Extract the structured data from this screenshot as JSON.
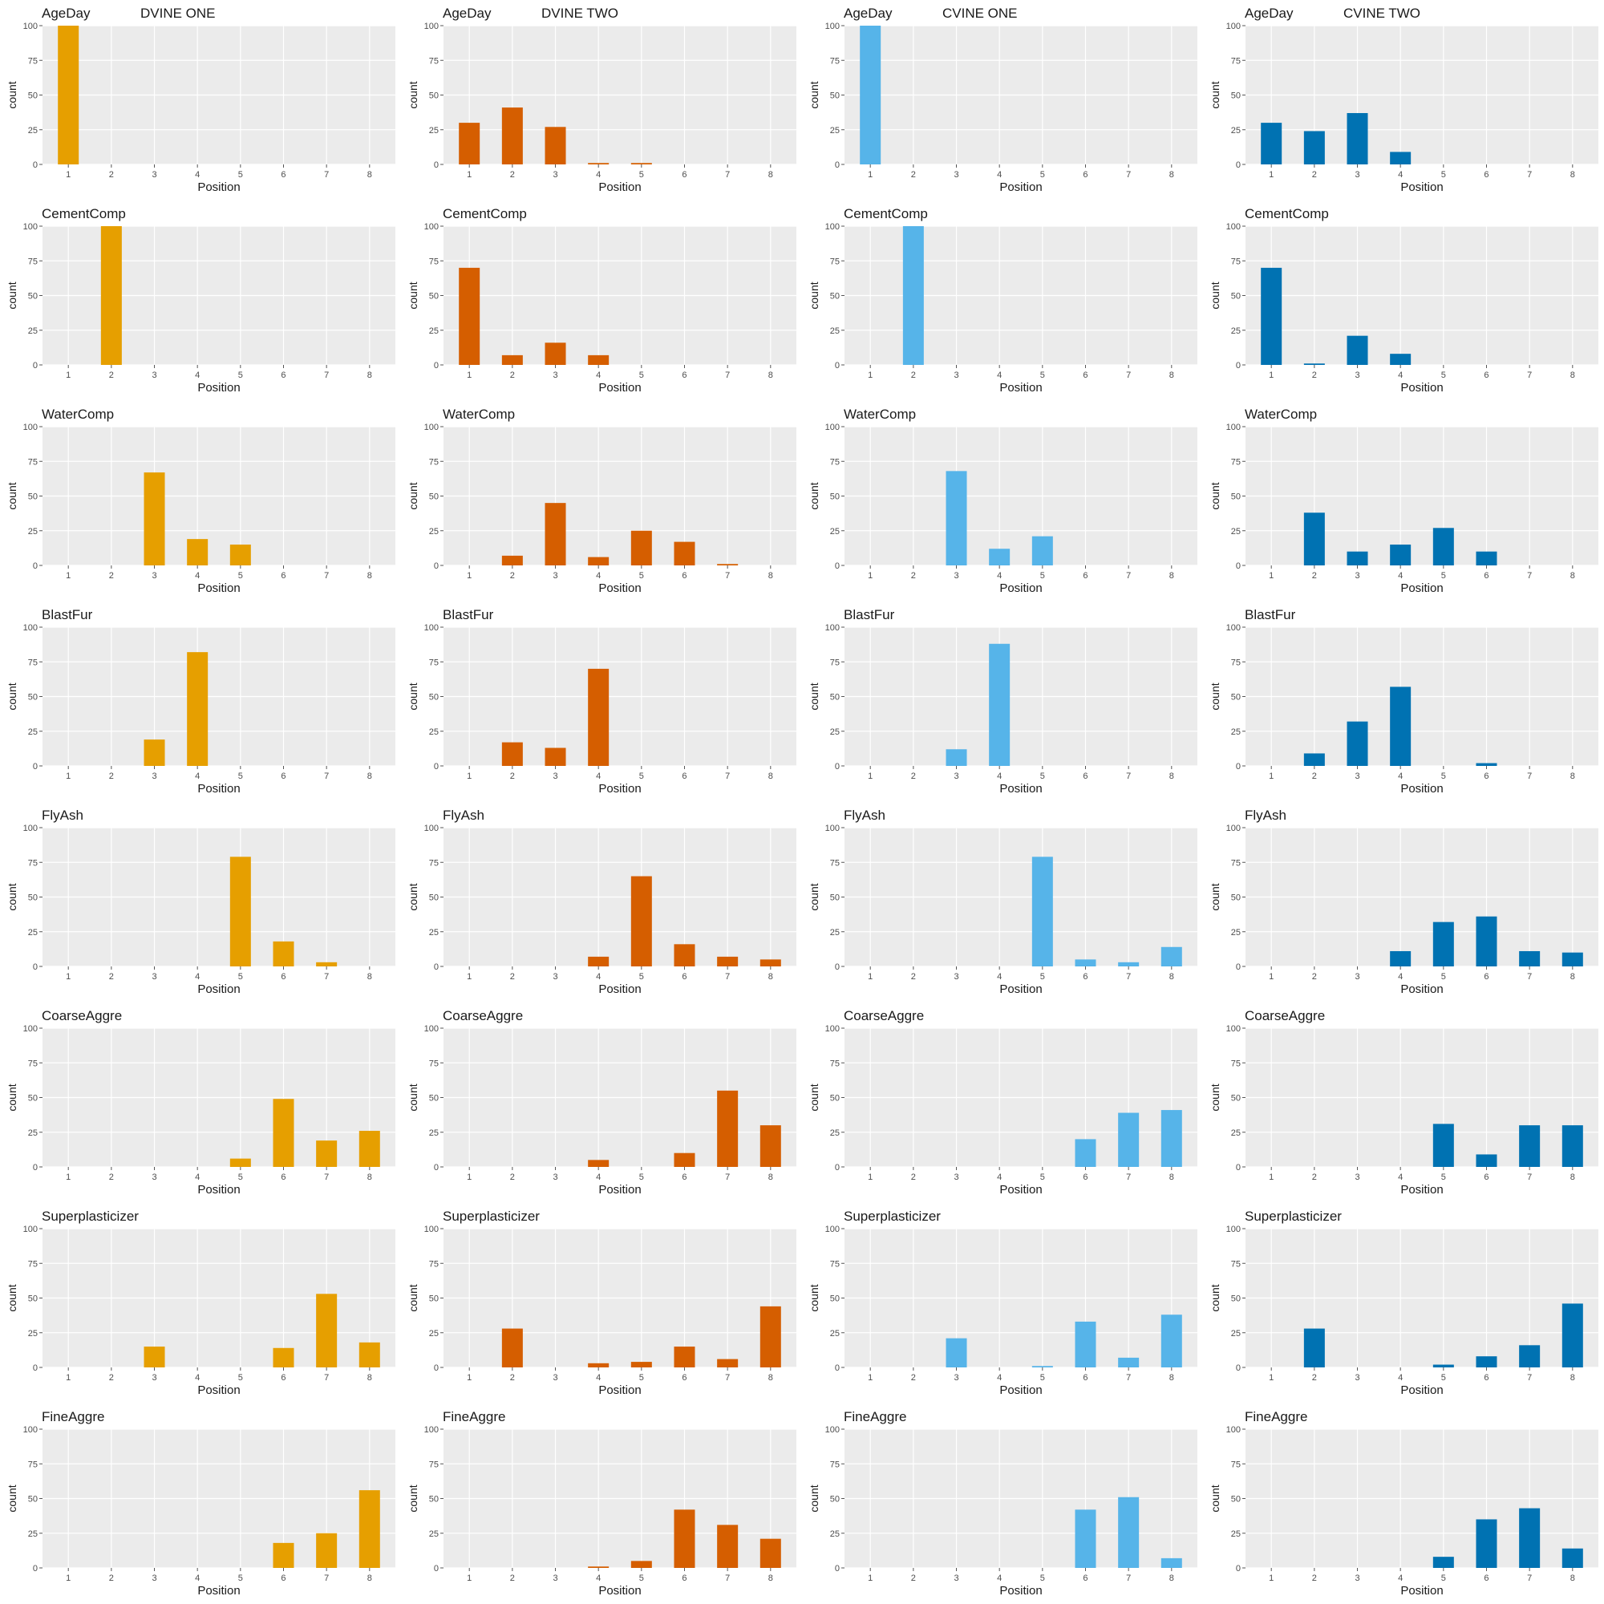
{
  "columns": [
    {
      "title": "DVINE ONE",
      "color": "#E69F00"
    },
    {
      "title": "DVINE TWO",
      "color": "#D55E00"
    },
    {
      "title": "CVINE ONE",
      "color": "#56B4E9"
    },
    {
      "title": "CVINE TWO",
      "color": "#0072B2"
    }
  ],
  "axis": {
    "xlabel": "Position",
    "ylabel": "count",
    "x_ticks": [
      "1",
      "2",
      "3",
      "4",
      "5",
      "6",
      "7",
      "8"
    ],
    "y_ticks": [
      "0",
      "25",
      "50",
      "75",
      "100"
    ],
    "ylim": [
      0,
      100
    ]
  },
  "chart_data": [
    {
      "type": "bar",
      "panel": "AgeDay",
      "column": "DVINE ONE",
      "categories": [
        1,
        2,
        3,
        4,
        5,
        6,
        7,
        8
      ],
      "values": [
        100,
        0,
        0,
        0,
        0,
        0,
        0,
        0
      ]
    },
    {
      "type": "bar",
      "panel": "AgeDay",
      "column": "DVINE TWO",
      "categories": [
        1,
        2,
        3,
        4,
        5,
        6,
        7,
        8
      ],
      "values": [
        30,
        41,
        27,
        1,
        1,
        0,
        0,
        0
      ]
    },
    {
      "type": "bar",
      "panel": "AgeDay",
      "column": "CVINE ONE",
      "categories": [
        1,
        2,
        3,
        4,
        5,
        6,
        7,
        8
      ],
      "values": [
        100,
        0,
        0,
        0,
        0,
        0,
        0,
        0
      ]
    },
    {
      "type": "bar",
      "panel": "AgeDay",
      "column": "CVINE TWO",
      "categories": [
        1,
        2,
        3,
        4,
        5,
        6,
        7,
        8
      ],
      "values": [
        30,
        24,
        37,
        9,
        0,
        0,
        0,
        0
      ]
    },
    {
      "type": "bar",
      "panel": "CementComp",
      "column": "DVINE ONE",
      "categories": [
        1,
        2,
        3,
        4,
        5,
        6,
        7,
        8
      ],
      "values": [
        0,
        100,
        0,
        0,
        0,
        0,
        0,
        0
      ]
    },
    {
      "type": "bar",
      "panel": "CementComp",
      "column": "DVINE TWO",
      "categories": [
        1,
        2,
        3,
        4,
        5,
        6,
        7,
        8
      ],
      "values": [
        70,
        7,
        16,
        7,
        0,
        0,
        0,
        0
      ]
    },
    {
      "type": "bar",
      "panel": "CementComp",
      "column": "CVINE ONE",
      "categories": [
        1,
        2,
        3,
        4,
        5,
        6,
        7,
        8
      ],
      "values": [
        0,
        100,
        0,
        0,
        0,
        0,
        0,
        0
      ]
    },
    {
      "type": "bar",
      "panel": "CementComp",
      "column": "CVINE TWO",
      "categories": [
        1,
        2,
        3,
        4,
        5,
        6,
        7,
        8
      ],
      "values": [
        70,
        1,
        21,
        8,
        0,
        0,
        0,
        0
      ]
    },
    {
      "type": "bar",
      "panel": "WaterComp",
      "column": "DVINE ONE",
      "categories": [
        1,
        2,
        3,
        4,
        5,
        6,
        7,
        8
      ],
      "values": [
        0,
        0,
        67,
        19,
        15,
        0,
        0,
        0
      ]
    },
    {
      "type": "bar",
      "panel": "WaterComp",
      "column": "DVINE TWO",
      "categories": [
        1,
        2,
        3,
        4,
        5,
        6,
        7,
        8
      ],
      "values": [
        0,
        7,
        45,
        6,
        25,
        17,
        1,
        0
      ]
    },
    {
      "type": "bar",
      "panel": "WaterComp",
      "column": "CVINE ONE",
      "categories": [
        1,
        2,
        3,
        4,
        5,
        6,
        7,
        8
      ],
      "values": [
        0,
        0,
        68,
        12,
        21,
        0,
        0,
        0
      ]
    },
    {
      "type": "bar",
      "panel": "WaterComp",
      "column": "CVINE TWO",
      "categories": [
        1,
        2,
        3,
        4,
        5,
        6,
        7,
        8
      ],
      "values": [
        0,
        38,
        10,
        15,
        27,
        10,
        0,
        0
      ]
    },
    {
      "type": "bar",
      "panel": "BlastFur",
      "column": "DVINE ONE",
      "categories": [
        1,
        2,
        3,
        4,
        5,
        6,
        7,
        8
      ],
      "values": [
        0,
        0,
        19,
        82,
        0,
        0,
        0,
        0
      ]
    },
    {
      "type": "bar",
      "panel": "BlastFur",
      "column": "DVINE TWO",
      "categories": [
        1,
        2,
        3,
        4,
        5,
        6,
        7,
        8
      ],
      "values": [
        0,
        17,
        13,
        70,
        0,
        0,
        0,
        0
      ]
    },
    {
      "type": "bar",
      "panel": "BlastFur",
      "column": "CVINE ONE",
      "categories": [
        1,
        2,
        3,
        4,
        5,
        6,
        7,
        8
      ],
      "values": [
        0,
        0,
        12,
        88,
        0,
        0,
        0,
        0
      ]
    },
    {
      "type": "bar",
      "panel": "BlastFur",
      "column": "CVINE TWO",
      "categories": [
        1,
        2,
        3,
        4,
        5,
        6,
        7,
        8
      ],
      "values": [
        0,
        9,
        32,
        57,
        0,
        2,
        0,
        0
      ]
    },
    {
      "type": "bar",
      "panel": "FlyAsh",
      "column": "DVINE ONE",
      "categories": [
        1,
        2,
        3,
        4,
        5,
        6,
        7,
        8
      ],
      "values": [
        0,
        0,
        0,
        0,
        79,
        18,
        3,
        0
      ]
    },
    {
      "type": "bar",
      "panel": "FlyAsh",
      "column": "DVINE TWO",
      "categories": [
        1,
        2,
        3,
        4,
        5,
        6,
        7,
        8
      ],
      "values": [
        0,
        0,
        0,
        7,
        65,
        16,
        7,
        5
      ]
    },
    {
      "type": "bar",
      "panel": "FlyAsh",
      "column": "CVINE ONE",
      "categories": [
        1,
        2,
        3,
        4,
        5,
        6,
        7,
        8
      ],
      "values": [
        0,
        0,
        0,
        0,
        79,
        5,
        3,
        14
      ]
    },
    {
      "type": "bar",
      "panel": "FlyAsh",
      "column": "CVINE TWO",
      "categories": [
        1,
        2,
        3,
        4,
        5,
        6,
        7,
        8
      ],
      "values": [
        0,
        0,
        0,
        11,
        32,
        36,
        11,
        10
      ]
    },
    {
      "type": "bar",
      "panel": "CoarseAggre",
      "column": "DVINE ONE",
      "categories": [
        1,
        2,
        3,
        4,
        5,
        6,
        7,
        8
      ],
      "values": [
        0,
        0,
        0,
        0,
        6,
        49,
        19,
        26
      ]
    },
    {
      "type": "bar",
      "panel": "CoarseAggre",
      "column": "DVINE TWO",
      "categories": [
        1,
        2,
        3,
        4,
        5,
        6,
        7,
        8
      ],
      "values": [
        0,
        0,
        0,
        5,
        0,
        10,
        55,
        30
      ]
    },
    {
      "type": "bar",
      "panel": "CoarseAggre",
      "column": "CVINE ONE",
      "categories": [
        1,
        2,
        3,
        4,
        5,
        6,
        7,
        8
      ],
      "values": [
        0,
        0,
        0,
        0,
        0,
        20,
        39,
        41
      ]
    },
    {
      "type": "bar",
      "panel": "CoarseAggre",
      "column": "CVINE TWO",
      "categories": [
        1,
        2,
        3,
        4,
        5,
        6,
        7,
        8
      ],
      "values": [
        0,
        0,
        0,
        0,
        31,
        9,
        30,
        30
      ]
    },
    {
      "type": "bar",
      "panel": "Superplasticizer",
      "column": "DVINE ONE",
      "categories": [
        1,
        2,
        3,
        4,
        5,
        6,
        7,
        8
      ],
      "values": [
        0,
        0,
        15,
        0,
        0,
        14,
        53,
        18
      ]
    },
    {
      "type": "bar",
      "panel": "Superplasticizer",
      "column": "DVINE TWO",
      "categories": [
        1,
        2,
        3,
        4,
        5,
        6,
        7,
        8
      ],
      "values": [
        0,
        28,
        0,
        3,
        4,
        15,
        6,
        44
      ]
    },
    {
      "type": "bar",
      "panel": "Superplasticizer",
      "column": "CVINE ONE",
      "categories": [
        1,
        2,
        3,
        4,
        5,
        6,
        7,
        8
      ],
      "values": [
        0,
        0,
        21,
        0,
        1,
        33,
        7,
        38
      ]
    },
    {
      "type": "bar",
      "panel": "Superplasticizer",
      "column": "CVINE TWO",
      "categories": [
        1,
        2,
        3,
        4,
        5,
        6,
        7,
        8
      ],
      "values": [
        0,
        28,
        0,
        0,
        2,
        8,
        16,
        46
      ]
    },
    {
      "type": "bar",
      "panel": "FineAggre",
      "column": "DVINE ONE",
      "categories": [
        1,
        2,
        3,
        4,
        5,
        6,
        7,
        8
      ],
      "values": [
        0,
        0,
        0,
        0,
        0,
        18,
        25,
        56
      ]
    },
    {
      "type": "bar",
      "panel": "FineAggre",
      "column": "DVINE TWO",
      "categories": [
        1,
        2,
        3,
        4,
        5,
        6,
        7,
        8
      ],
      "values": [
        0,
        0,
        0,
        1,
        5,
        42,
        31,
        21
      ]
    },
    {
      "type": "bar",
      "panel": "FineAggre",
      "column": "CVINE ONE",
      "categories": [
        1,
        2,
        3,
        4,
        5,
        6,
        7,
        8
      ],
      "values": [
        0,
        0,
        0,
        0,
        0,
        42,
        51,
        7
      ]
    },
    {
      "type": "bar",
      "panel": "FineAggre",
      "column": "CVINE TWO",
      "categories": [
        1,
        2,
        3,
        4,
        5,
        6,
        7,
        8
      ],
      "values": [
        0,
        0,
        0,
        0,
        8,
        35,
        43,
        14
      ]
    }
  ]
}
